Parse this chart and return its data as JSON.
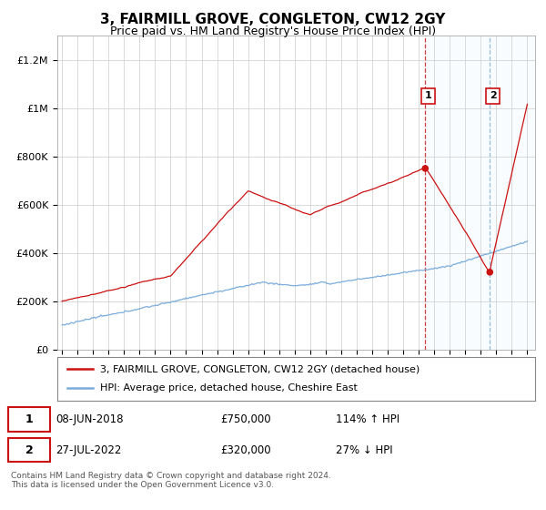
{
  "title": "3, FAIRMILL GROVE, CONGLETON, CW12 2GY",
  "subtitle": "Price paid vs. HM Land Registry's House Price Index (HPI)",
  "title_fontsize": 11,
  "subtitle_fontsize": 9,
  "background_color": "#ffffff",
  "grid_color": "#cccccc",
  "hpi_line_color": "#7aacdc",
  "price_line_color": "#cc1111",
  "ylim": [
    0,
    1300000
  ],
  "yticks": [
    0,
    200000,
    400000,
    600000,
    800000,
    1000000,
    1200000
  ],
  "ytick_labels": [
    "£0",
    "£200K",
    "£400K",
    "£600K",
    "£800K",
    "£1M",
    "£1.2M"
  ],
  "legend_label_price": "3, FAIRMILL GROVE, CONGLETON, CW12 2GY (detached house)",
  "legend_label_hpi": "HPI: Average price, detached house, Cheshire East",
  "marker1_year": 2018.45,
  "marker1_price": 750000,
  "marker2_year": 2022.55,
  "marker2_price": 320000,
  "footer": "Contains HM Land Registry data © Crown copyright and database right 2024.\nThis data is licensed under the Open Government Licence v3.0.",
  "vline1_color": "#cc1111",
  "vline2_color": "#7aacdc",
  "shade_color": "#ddeeff",
  "hatch_color": "#ccddee"
}
